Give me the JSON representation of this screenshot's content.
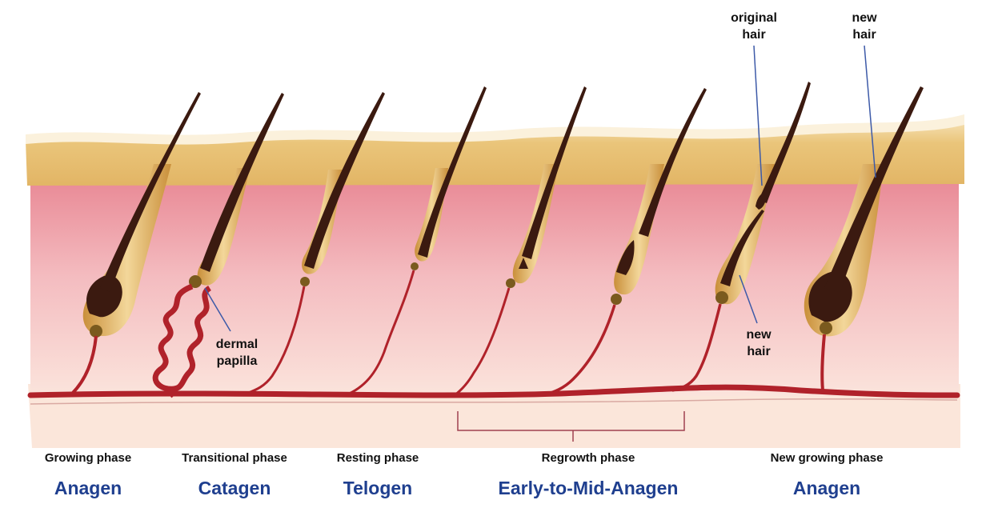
{
  "labels": {
    "original_hair": [
      "original",
      "hair"
    ],
    "new_hair_top": [
      "new",
      "hair"
    ],
    "new_hair_mid": [
      "new",
      "hair"
    ],
    "dermal_papilla": [
      "dermal",
      "papilla"
    ]
  },
  "phases": [
    {
      "phase": "Growing phase",
      "stage": "Anagen"
    },
    {
      "phase": "Transitional phase",
      "stage": "Catagen"
    },
    {
      "phase": "Resting phase",
      "stage": "Telogen"
    },
    {
      "phase": "Regrowth phase",
      "stage": "Early-to-Mid-Anagen"
    },
    {
      "phase": "New growing phase",
      "stage": "Anagen"
    }
  ],
  "colors": {
    "stage_text": "#1f3f8f",
    "phase_text": "#111111",
    "blood_vessel": "#b0222a",
    "hair_shaft": "#3b1a10",
    "follicle": "#d9a44c",
    "epidermis": "#e8bf6b",
    "dermis": "#ee9aa3",
    "papilla": "#7a5a1e",
    "leader_line": "#3d5aa8"
  }
}
